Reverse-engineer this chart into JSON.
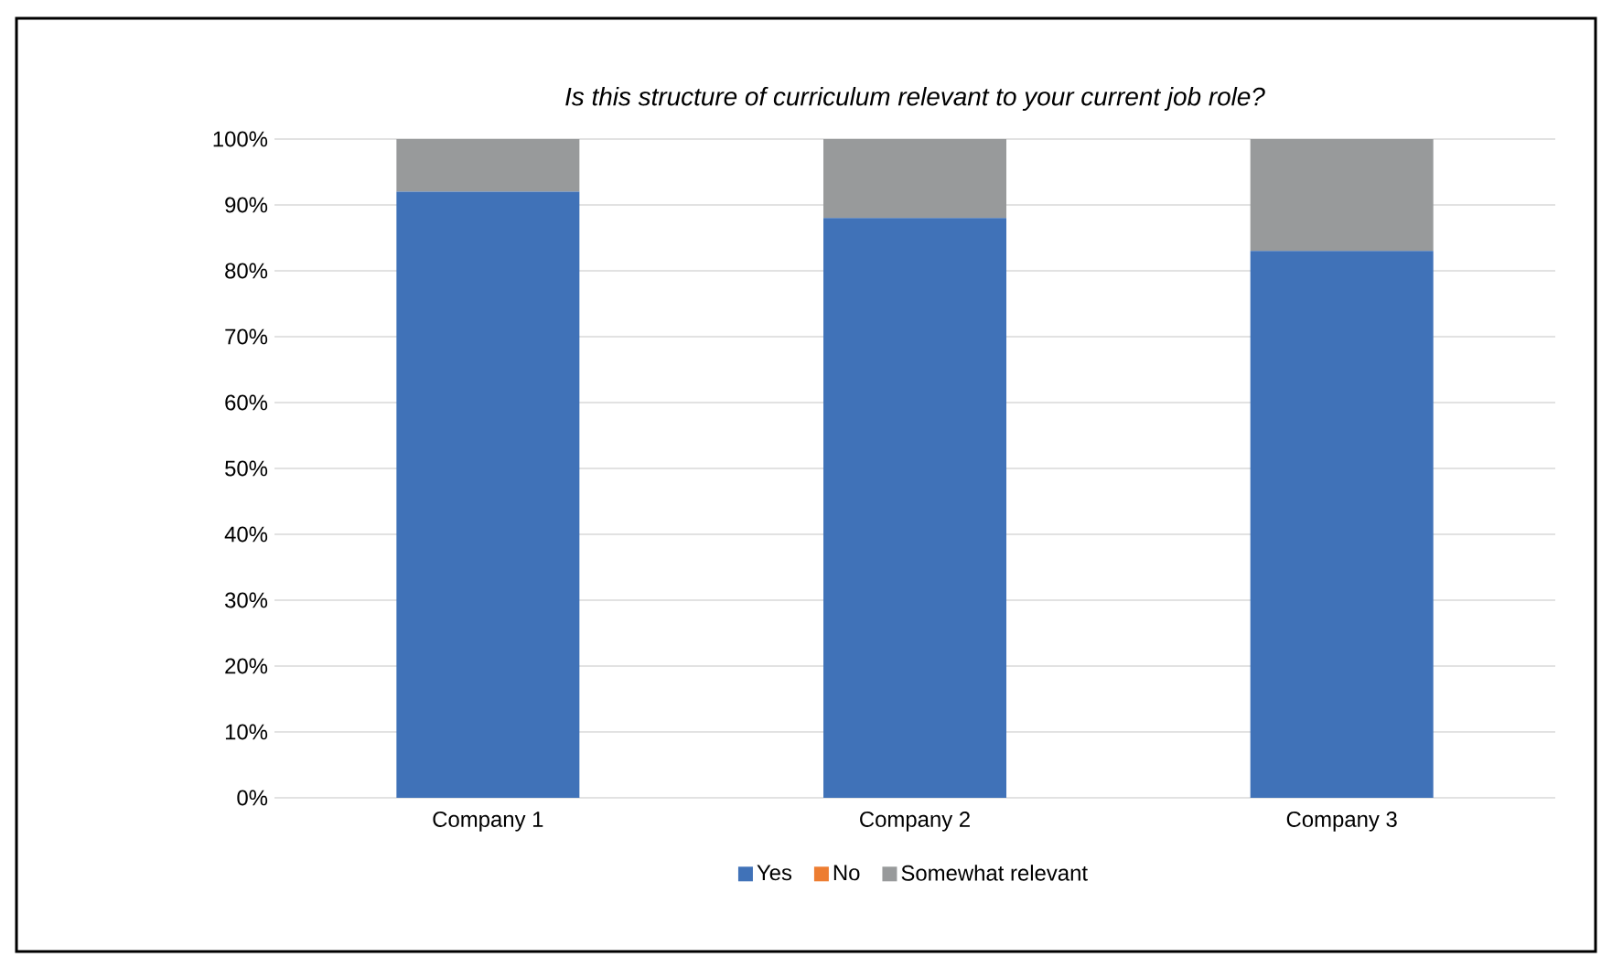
{
  "chart_data": {
    "type": "bar",
    "stacked": true,
    "title": "Is this structure of curriculum relevant to your current job role?",
    "categories": [
      "Company 1",
      "Company 2",
      "Company 3"
    ],
    "series": [
      {
        "name": "Yes",
        "color": "#4072b8",
        "values": [
          92,
          88,
          83
        ]
      },
      {
        "name": "No",
        "color": "#ed7d31",
        "values": [
          0,
          0,
          0
        ]
      },
      {
        "name": "Somewhat relevant",
        "color": "#989a9b",
        "values": [
          8,
          12,
          17
        ]
      }
    ],
    "ylim": [
      0,
      100
    ],
    "yticks": [
      {
        "value": 0,
        "label": "0%"
      },
      {
        "value": 10,
        "label": "10%"
      },
      {
        "value": 20,
        "label": "20%"
      },
      {
        "value": 30,
        "label": "30%"
      },
      {
        "value": 40,
        "label": "40%"
      },
      {
        "value": 50,
        "label": "50%"
      },
      {
        "value": 60,
        "label": "60%"
      },
      {
        "value": 70,
        "label": "70%"
      },
      {
        "value": 80,
        "label": "80%"
      },
      {
        "value": 90,
        "label": "90%"
      },
      {
        "value": 100,
        "label": "100%"
      }
    ],
    "grid": "y",
    "legend": "bottom"
  }
}
